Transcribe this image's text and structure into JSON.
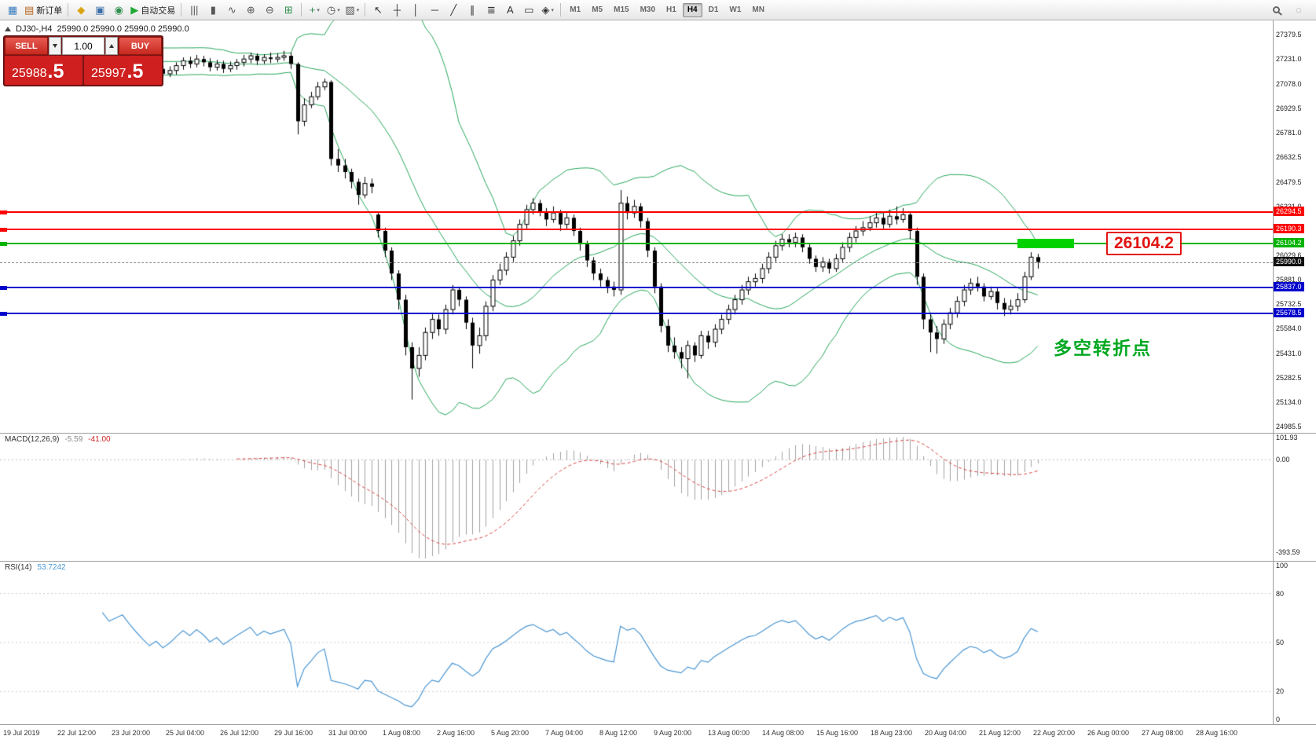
{
  "toolbar": {
    "items": [
      {
        "type": "icon",
        "name": "chart-window-icon",
        "glyph": "▦",
        "color": "#3a7dbf"
      },
      {
        "type": "button",
        "name": "new-order-button",
        "glyph": "▤",
        "color": "#b5651d",
        "label": "新订单"
      },
      {
        "type": "sep"
      },
      {
        "type": "icon",
        "name": "profiles-icon",
        "glyph": "◆",
        "color": "#dba412"
      },
      {
        "type": "icon",
        "name": "navigator-icon",
        "glyph": "▣",
        "color": "#3a6ea8"
      },
      {
        "type": "icon",
        "name": "terminal-icon",
        "glyph": "◉",
        "color": "#2f8f4e"
      },
      {
        "type": "button",
        "name": "autotrading-button",
        "glyph": "▶",
        "color": "#1faa34",
        "label": "自动交易"
      },
      {
        "type": "sep"
      },
      {
        "type": "icon",
        "name": "bar-chart-icon",
        "glyph": "|||",
        "color": "#555555"
      },
      {
        "type": "icon",
        "name": "candlestick-icon",
        "glyph": "▮",
        "color": "#555555"
      },
      {
        "type": "icon",
        "name": "line-chart-icon",
        "glyph": "∿",
        "color": "#555555"
      },
      {
        "type": "icon",
        "name": "zoom-in-icon",
        "glyph": "⊕",
        "color": "#555555"
      },
      {
        "type": "icon",
        "name": "zoom-out-icon",
        "glyph": "⊖",
        "color": "#555555"
      },
      {
        "type": "icon",
        "name": "tile-windows-icon",
        "glyph": "⊞",
        "color": "#2f8f4e"
      },
      {
        "type": "sep"
      },
      {
        "type": "icon",
        "name": "indicators-icon",
        "glyph": "+",
        "color": "#2f8f4e",
        "dropdown": true
      },
      {
        "type": "icon",
        "name": "periods-icon",
        "glyph": "◷",
        "color": "#555555",
        "dropdown": true
      },
      {
        "type": "icon",
        "name": "templates-icon",
        "glyph": "▨",
        "color": "#555555",
        "dropdown": true
      },
      {
        "type": "sep"
      },
      {
        "type": "icon",
        "name": "cursor-icon",
        "glyph": "↖",
        "color": "#333333"
      },
      {
        "type": "icon",
        "name": "crosshair-icon",
        "glyph": "┼",
        "color": "#333333"
      },
      {
        "type": "icon",
        "name": "vertical-line-icon",
        "glyph": "│",
        "color": "#333333"
      },
      {
        "type": "icon",
        "name": "horizontal-line-icon",
        "glyph": "─",
        "color": "#333333"
      },
      {
        "type": "icon",
        "name": "trendline-icon",
        "glyph": "╱",
        "color": "#333333"
      },
      {
        "type": "icon",
        "name": "channel-icon",
        "glyph": "∥",
        "color": "#333333"
      },
      {
        "type": "icon",
        "name": "fibonacci-icon",
        "glyph": "≣",
        "color": "#333333"
      },
      {
        "type": "icon",
        "name": "text-icon",
        "glyph": "A",
        "color": "#333333"
      },
      {
        "type": "icon",
        "name": "label-icon",
        "glyph": "▭",
        "color": "#333333"
      },
      {
        "type": "icon",
        "name": "shapes-icon",
        "glyph": "◈",
        "color": "#333333",
        "dropdown": true
      },
      {
        "type": "sep"
      },
      {
        "type": "tf",
        "name": "timeframe-m1",
        "label": "M1"
      },
      {
        "type": "tf",
        "name": "timeframe-m5",
        "label": "M5"
      },
      {
        "type": "tf",
        "name": "timeframe-m15",
        "label": "M15"
      },
      {
        "type": "tf",
        "name": "timeframe-m30",
        "label": "M30"
      },
      {
        "type": "tf",
        "name": "timeframe-h1",
        "label": "H1"
      },
      {
        "type": "tf",
        "name": "timeframe-h4",
        "label": "H4",
        "active": true
      },
      {
        "type": "tf",
        "name": "timeframe-d1",
        "label": "D1"
      },
      {
        "type": "tf",
        "name": "timeframe-w1",
        "label": "W1"
      },
      {
        "type": "tf",
        "name": "timeframe-mn",
        "label": "MN"
      }
    ],
    "right_items": [
      {
        "type": "icon",
        "name": "search-icon",
        "shape": "mag"
      },
      {
        "type": "icon",
        "name": "community-icon",
        "glyph": "◌",
        "color": "#888888"
      }
    ]
  },
  "trade_panel": {
    "sell_label": "SELL",
    "buy_label": "BUY",
    "lot": "1.00",
    "sell_price": "25988.5",
    "sell_main": "25988",
    "sell_pips": ".5",
    "buy_price": "25997.5",
    "buy_main": "25997",
    "buy_pips": ".5"
  },
  "chart_data": {
    "type": "candlestick",
    "symbol": "DJ30-",
    "period": "H4",
    "symbol_period": "DJ30-,H4",
    "ohlc_display": "25990.0 25990.0 25990.0 25990.0",
    "current_price": "25990.0",
    "y_range": [
      24947,
      27466
    ],
    "y_axis_labels": [
      "27379.5",
      "27231.0",
      "27078.0",
      "26929.5",
      "26781.0",
      "26632.5",
      "26479.5",
      "26331.0",
      "26182.5",
      "26029.6",
      "25881.0",
      "25732.5",
      "25584.0",
      "25431.0",
      "25282.5",
      "25134.0",
      "24985.5"
    ],
    "x_labels": [
      "19 Jul 2019",
      "22 Jul 12:00",
      "23 Jul 20:00",
      "25 Jul 04:00",
      "26 Jul 12:00",
      "29 Jul 16:00",
      "31 Jul 00:00",
      "1 Aug 08:00",
      "2 Aug 16:00",
      "5 Aug 20:00",
      "7 Aug 04:00",
      "8 Aug 12:00",
      "9 Aug 20:00",
      "13 Aug 00:00",
      "14 Aug 08:00",
      "15 Aug 16:00",
      "18 Aug 23:00",
      "20 Aug 04:00",
      "21 Aug 12:00",
      "22 Aug 20:00",
      "26 Aug 00:00",
      "27 Aug 08:00",
      "28 Aug 16:00"
    ],
    "candles": [
      [
        27100,
        27145,
        27080,
        27120
      ],
      [
        27120,
        27170,
        27100,
        27150
      ],
      [
        27150,
        27175,
        27105,
        27130
      ],
      [
        27130,
        27195,
        27110,
        27170
      ],
      [
        27170,
        27200,
        27135,
        27160
      ],
      [
        27160,
        27215,
        27140,
        27190
      ],
      [
        27190,
        27235,
        27165,
        27210
      ],
      [
        27210,
        27230,
        27155,
        27180
      ],
      [
        27180,
        27245,
        27160,
        27220
      ],
      [
        27220,
        27240,
        27175,
        27200
      ],
      [
        27200,
        27265,
        27180,
        27240
      ],
      [
        27240,
        27290,
        27215,
        27270
      ],
      [
        27270,
        27285,
        27225,
        27250
      ],
      [
        27250,
        27300,
        27230,
        27280
      ],
      [
        27280,
        27295,
        27235,
        27260
      ],
      [
        27260,
        27280,
        27205,
        27230
      ],
      [
        27230,
        27275,
        27210,
        27250
      ],
      [
        27250,
        27290,
        27225,
        27270
      ],
      [
        27270,
        27285,
        27215,
        27240
      ],
      [
        27240,
        27260,
        27185,
        27210
      ],
      [
        27210,
        27230,
        27155,
        27180
      ],
      [
        27180,
        27200,
        27125,
        27150
      ],
      [
        27150,
        27195,
        27130,
        27170
      ],
      [
        27170,
        27190,
        27115,
        27140
      ],
      [
        27140,
        27185,
        27120,
        27160
      ],
      [
        27160,
        27210,
        27135,
        27190
      ],
      [
        27190,
        27240,
        27165,
        27220
      ],
      [
        27220,
        27245,
        27175,
        27200
      ],
      [
        27200,
        27255,
        27180,
        27230
      ],
      [
        27230,
        27250,
        27185,
        27210
      ],
      [
        27210,
        27235,
        27155,
        27180
      ],
      [
        27180,
        27225,
        27160,
        27200
      ],
      [
        27200,
        27220,
        27145,
        27170
      ],
      [
        27170,
        27215,
        27150,
        27190
      ],
      [
        27190,
        27230,
        27165,
        27210
      ],
      [
        27210,
        27255,
        27185,
        27230
      ],
      [
        27230,
        27270,
        27205,
        27250
      ],
      [
        27250,
        27265,
        27195,
        27220
      ],
      [
        27220,
        27260,
        27200,
        27240
      ],
      [
        27240,
        27270,
        27205,
        27230
      ],
      [
        27230,
        27265,
        27210,
        27240
      ],
      [
        27240,
        27280,
        27220,
        27250
      ],
      [
        27250,
        27270,
        27170,
        27200
      ],
      [
        27200,
        27210,
        26770,
        26850
      ],
      [
        26850,
        26990,
        26820,
        26950
      ],
      [
        26950,
        27030,
        26930,
        27000
      ],
      [
        27000,
        27090,
        26980,
        27060
      ],
      [
        27060,
        27110,
        27040,
        27090
      ],
      [
        27090,
        27100,
        26580,
        26620
      ],
      [
        26620,
        26680,
        26540,
        26580
      ],
      [
        26580,
        26620,
        26500,
        26540
      ],
      [
        26540,
        26560,
        26440,
        26480
      ],
      [
        26480,
        26500,
        26340,
        26400
      ],
      [
        26400,
        26510,
        26380,
        26470
      ],
      [
        26470,
        26500,
        26410,
        26450
      ],
      [
        26280,
        26300,
        26140,
        26180
      ],
      [
        26180,
        26200,
        26020,
        26060
      ],
      [
        26060,
        26080,
        25880,
        25920
      ],
      [
        25920,
        25940,
        25700,
        25760
      ],
      [
        25760,
        25790,
        25420,
        25470
      ],
      [
        25470,
        25500,
        25150,
        25340
      ],
      [
        25340,
        25470,
        25290,
        25420
      ],
      [
        25420,
        25590,
        25390,
        25560
      ],
      [
        25560,
        25680,
        25520,
        25640
      ],
      [
        25640,
        25670,
        25540,
        25580
      ],
      [
        25580,
        25730,
        25550,
        25700
      ],
      [
        25700,
        25850,
        25670,
        25820
      ],
      [
        25820,
        25840,
        25720,
        25760
      ],
      [
        25760,
        25780,
        25580,
        25620
      ],
      [
        25620,
        25650,
        25340,
        25480
      ],
      [
        25480,
        25590,
        25430,
        25540
      ],
      [
        25540,
        25750,
        25510,
        25720
      ],
      [
        25720,
        25910,
        25690,
        25880
      ],
      [
        25880,
        25980,
        25850,
        25940
      ],
      [
        25940,
        26050,
        25910,
        26020
      ],
      [
        26020,
        26150,
        25990,
        26120
      ],
      [
        26120,
        26250,
        26090,
        26220
      ],
      [
        26220,
        26340,
        26190,
        26310
      ],
      [
        26310,
        26380,
        26280,
        26350
      ],
      [
        26350,
        26370,
        26270,
        26300
      ],
      [
        26300,
        26320,
        26210,
        26250
      ],
      [
        26250,
        26330,
        26230,
        26290
      ],
      [
        26290,
        26310,
        26180,
        26220
      ],
      [
        26220,
        26300,
        26190,
        26260
      ],
      [
        26260,
        26280,
        26150,
        26180
      ],
      [
        26180,
        26200,
        26060,
        26100
      ],
      [
        26100,
        26120,
        25960,
        26000
      ],
      [
        26000,
        26020,
        25880,
        25920
      ],
      [
        25920,
        25950,
        25840,
        25880
      ],
      [
        25880,
        25900,
        25800,
        25840
      ],
      [
        25840,
        25870,
        25780,
        25820
      ],
      [
        25820,
        26430,
        25790,
        26350
      ],
      [
        26350,
        26390,
        26250,
        26290
      ],
      [
        26290,
        26370,
        26260,
        26330
      ],
      [
        26330,
        26350,
        26200,
        26240
      ],
      [
        26240,
        26260,
        26020,
        26060
      ],
      [
        26060,
        26080,
        25800,
        25840
      ],
      [
        25840,
        25860,
        25560,
        25600
      ],
      [
        25600,
        25640,
        25440,
        25480
      ],
      [
        25480,
        25530,
        25400,
        25440
      ],
      [
        25440,
        25470,
        25340,
        25400
      ],
      [
        25400,
        25510,
        25280,
        25480
      ],
      [
        25480,
        25500,
        25380,
        25420
      ],
      [
        25420,
        25570,
        25400,
        25540
      ],
      [
        25540,
        25570,
        25460,
        25500
      ],
      [
        25500,
        25610,
        25470,
        25580
      ],
      [
        25580,
        25670,
        25550,
        25640
      ],
      [
        25640,
        25730,
        25610,
        25700
      ],
      [
        25700,
        25790,
        25670,
        25760
      ],
      [
        25760,
        25850,
        25730,
        25820
      ],
      [
        25820,
        25900,
        25790,
        25870
      ],
      [
        25870,
        25920,
        25840,
        25890
      ],
      [
        25890,
        25980,
        25860,
        25950
      ],
      [
        25950,
        26050,
        25920,
        26020
      ],
      [
        26020,
        26120,
        25990,
        26090
      ],
      [
        26090,
        26160,
        26060,
        26130
      ],
      [
        26130,
        26160,
        26080,
        26110
      ],
      [
        26110,
        26170,
        26080,
        26140
      ],
      [
        26140,
        26160,
        26050,
        26080
      ],
      [
        26080,
        26100,
        25980,
        26010
      ],
      [
        26010,
        26030,
        25930,
        25960
      ],
      [
        25960,
        26020,
        25930,
        25990
      ],
      [
        25990,
        26010,
        25920,
        25950
      ],
      [
        25950,
        26040,
        25930,
        26010
      ],
      [
        26010,
        26110,
        25990,
        26080
      ],
      [
        26080,
        26170,
        26050,
        26140
      ],
      [
        26140,
        26210,
        26110,
        26180
      ],
      [
        26180,
        26240,
        26150,
        26200
      ],
      [
        26200,
        26270,
        26180,
        26230
      ],
      [
        26230,
        26300,
        26200,
        26260
      ],
      [
        26260,
        26290,
        26190,
        26220
      ],
      [
        26220,
        26310,
        26200,
        26270
      ],
      [
        26270,
        26330,
        26220,
        26250
      ],
      [
        26250,
        26320,
        26230,
        26280
      ],
      [
        26280,
        26300,
        26130,
        26180
      ],
      [
        26180,
        26200,
        25850,
        25900
      ],
      [
        25900,
        25920,
        25580,
        25640
      ],
      [
        25640,
        25680,
        25440,
        25560
      ],
      [
        25560,
        25600,
        25430,
        25520
      ],
      [
        25520,
        25640,
        25490,
        25610
      ],
      [
        25610,
        25710,
        25580,
        25680
      ],
      [
        25680,
        25780,
        25650,
        25750
      ],
      [
        25750,
        25850,
        25720,
        25820
      ],
      [
        25820,
        25890,
        25790,
        25860
      ],
      [
        25860,
        25900,
        25810,
        25840
      ],
      [
        25840,
        25860,
        25750,
        25780
      ],
      [
        25780,
        25840,
        25760,
        25810
      ],
      [
        25810,
        25830,
        25700,
        25740
      ],
      [
        25740,
        25770,
        25660,
        25700
      ],
      [
        25700,
        25760,
        25670,
        25720
      ],
      [
        25720,
        25800,
        25690,
        25760
      ],
      [
        25760,
        25930,
        25740,
        25900
      ],
      [
        25900,
        26050,
        25880,
        26020
      ],
      [
        26020,
        26040,
        25950,
        25990
      ]
    ],
    "bollinger": {
      "period": 20,
      "deviation": 2,
      "color": "#26a65b"
    },
    "levels": [
      {
        "name": "resistance-line-1",
        "price": 26294.5,
        "color": "#ff0000",
        "style": "solid",
        "label": "26294.5"
      },
      {
        "name": "resistance-line-2",
        "price": 26190.3,
        "color": "#ff0000",
        "style": "solid",
        "label": "26190.3"
      },
      {
        "name": "pivot-line",
        "price": 26104.2,
        "color": "#00b300",
        "style": "solid",
        "label": "26104.2"
      },
      {
        "name": "current-price-line",
        "price": 25990.0,
        "color": "#111111",
        "style": "dashed",
        "label": "25990.0"
      },
      {
        "name": "support-line-1",
        "price": 25837.0,
        "color": "#0000cc",
        "style": "solid",
        "label": "25837.0"
      },
      {
        "name": "support-line-2",
        "price": 25678.5,
        "color": "#0000cc",
        "style": "solid",
        "label": "25678.5"
      }
    ],
    "highlight": {
      "price": 26104.2,
      "color": "#00d300"
    },
    "callout": {
      "text": "26104.2",
      "color": "#e31212"
    },
    "annotation": {
      "text": "多空转折点",
      "color": "#00a820"
    },
    "macd": {
      "title": "MACD(12,26,9)",
      "value_main": "-5.59",
      "value_signal": "-41.00",
      "axis_labels": [
        "101.93",
        "0.00",
        "-393.59"
      ],
      "y_range": [
        -430,
        115
      ]
    },
    "rsi": {
      "title": "RSI(14)",
      "value": "53.7242",
      "axis_labels": [
        "100",
        "80",
        "50",
        "20",
        "0"
      ],
      "levels": [
        80,
        50,
        20
      ]
    }
  }
}
